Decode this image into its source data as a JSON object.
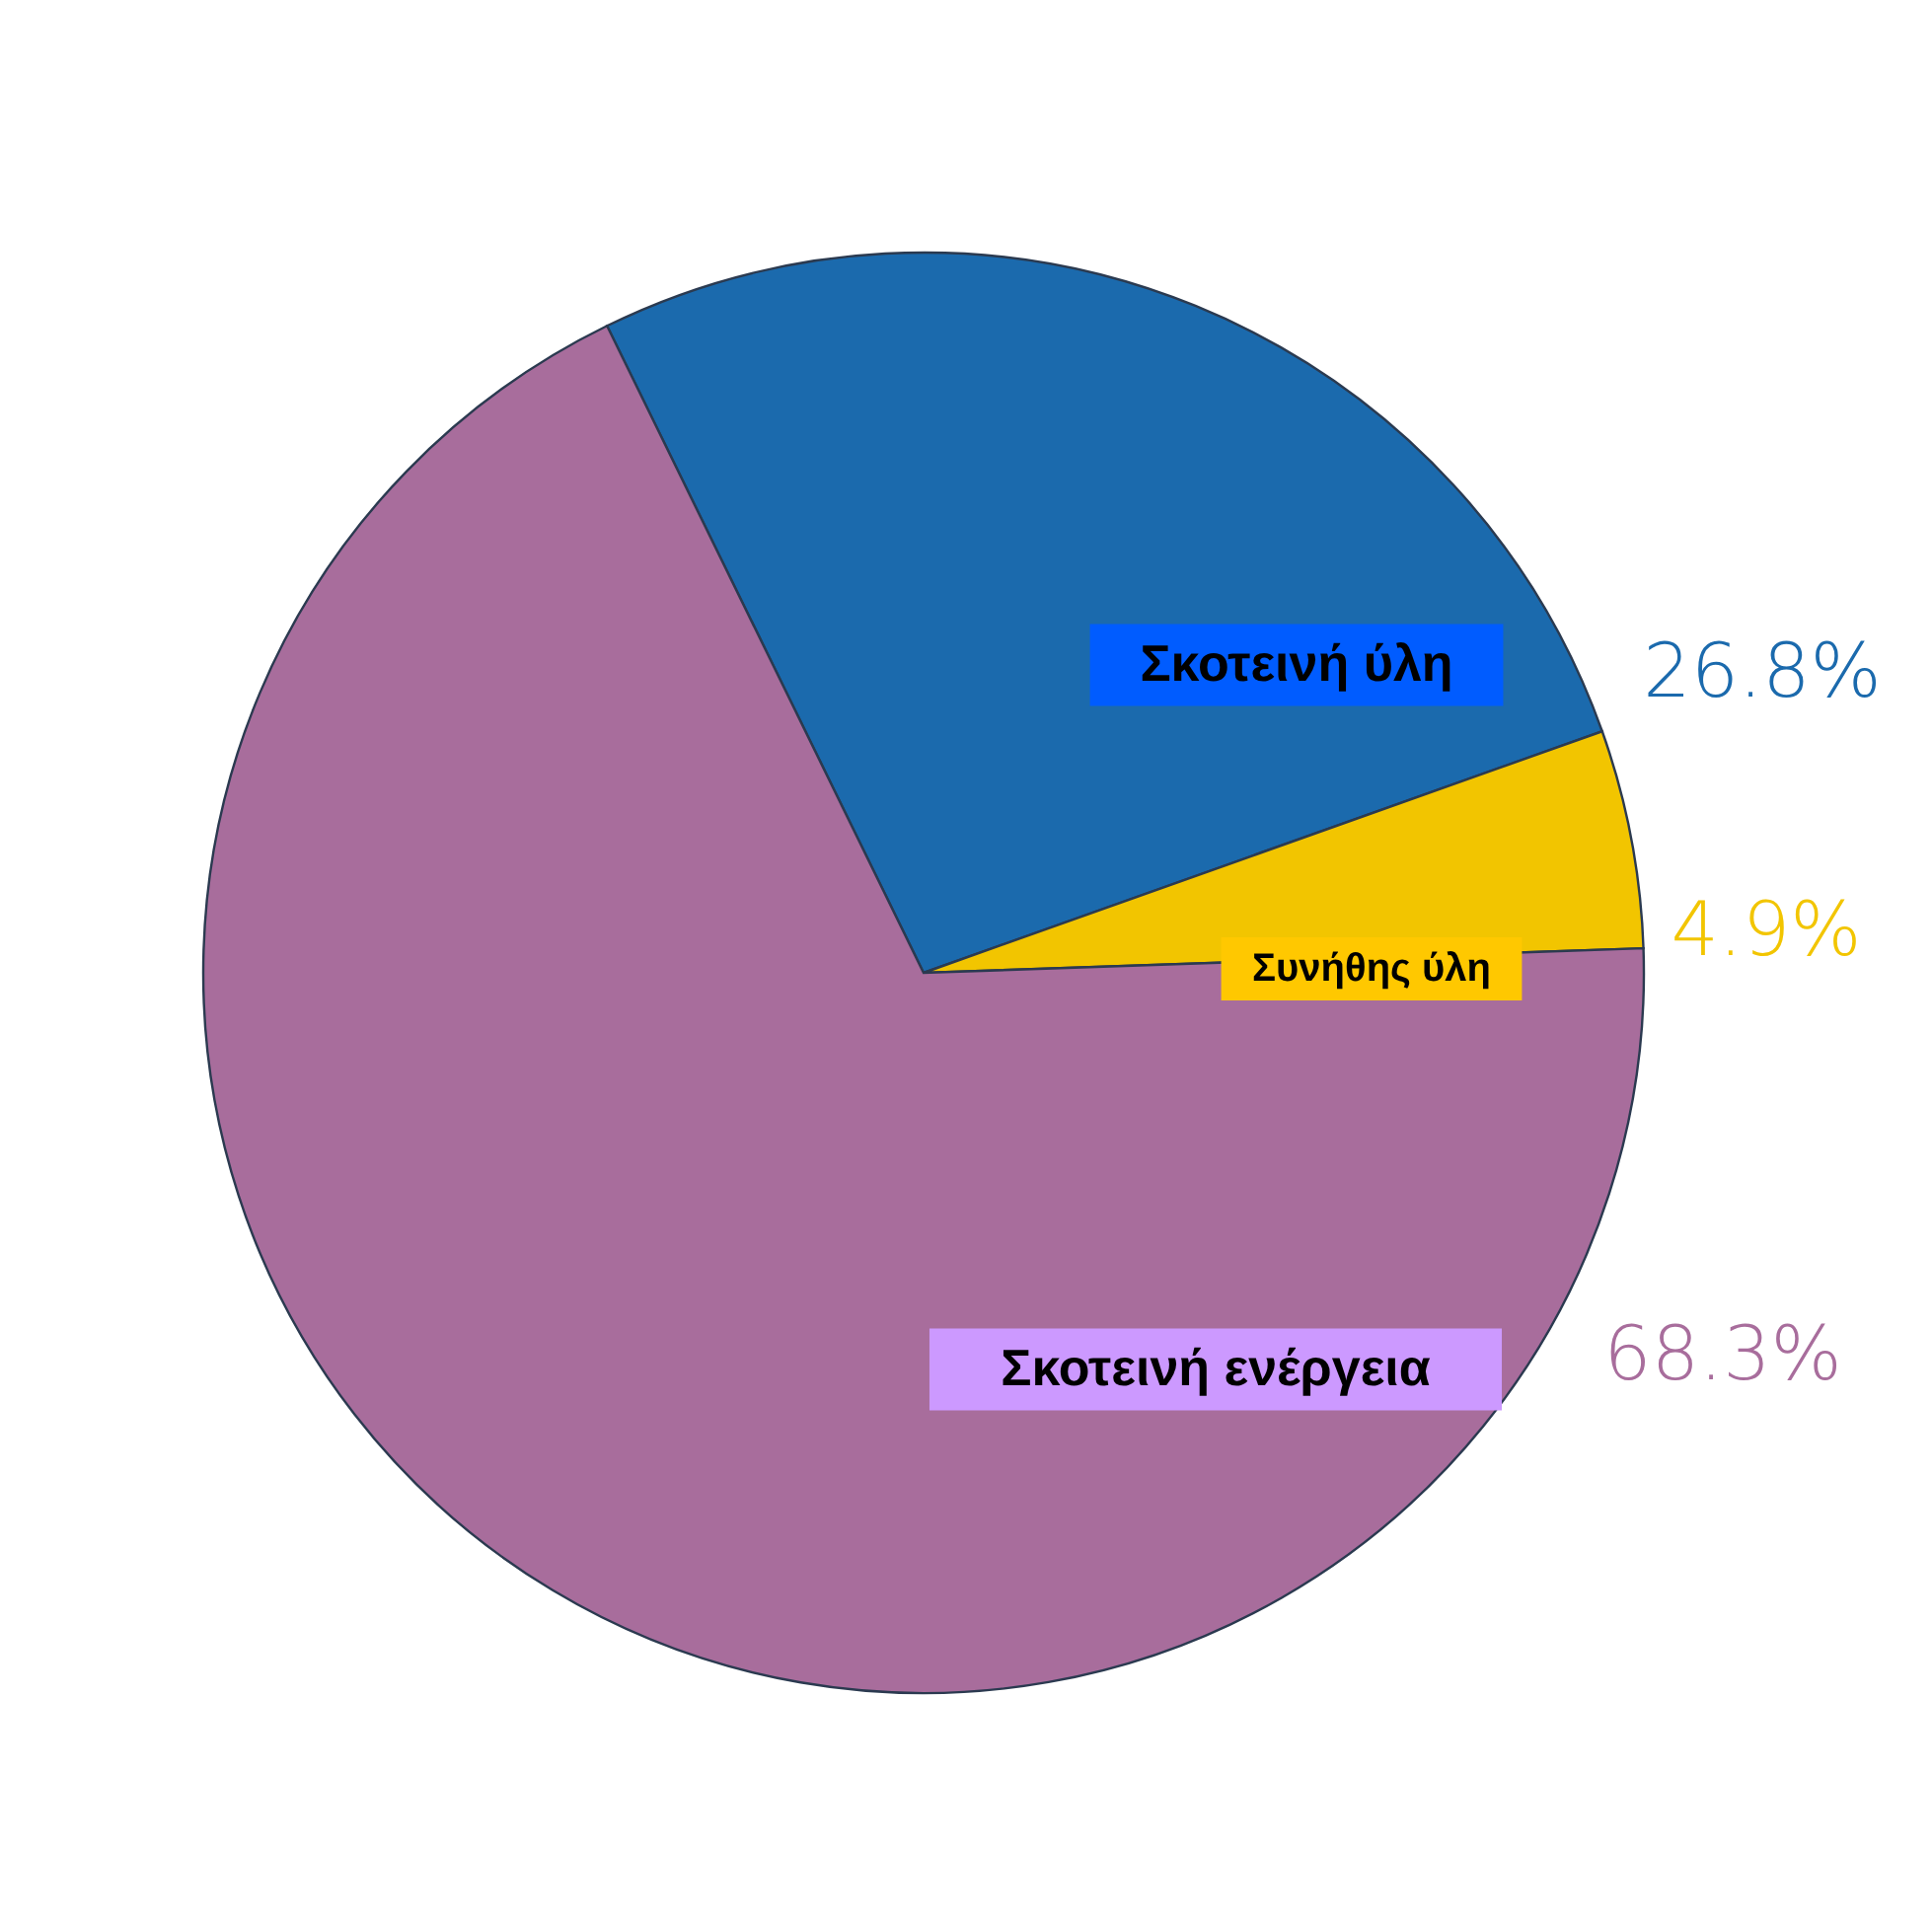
{
  "chart_data": {
    "type": "pie",
    "categories": [
      "Σκοτεινή ύλη",
      "Συνήθης ύλη",
      "Σκοτεινή ενέργεια"
    ],
    "values": [
      26.8,
      4.9,
      68.3
    ],
    "colors": [
      "#1b6aad",
      "#f2c500",
      "#a86d9c"
    ],
    "value_labels": [
      "26.8%",
      "4.9%",
      "68.3%"
    ]
  }
}
